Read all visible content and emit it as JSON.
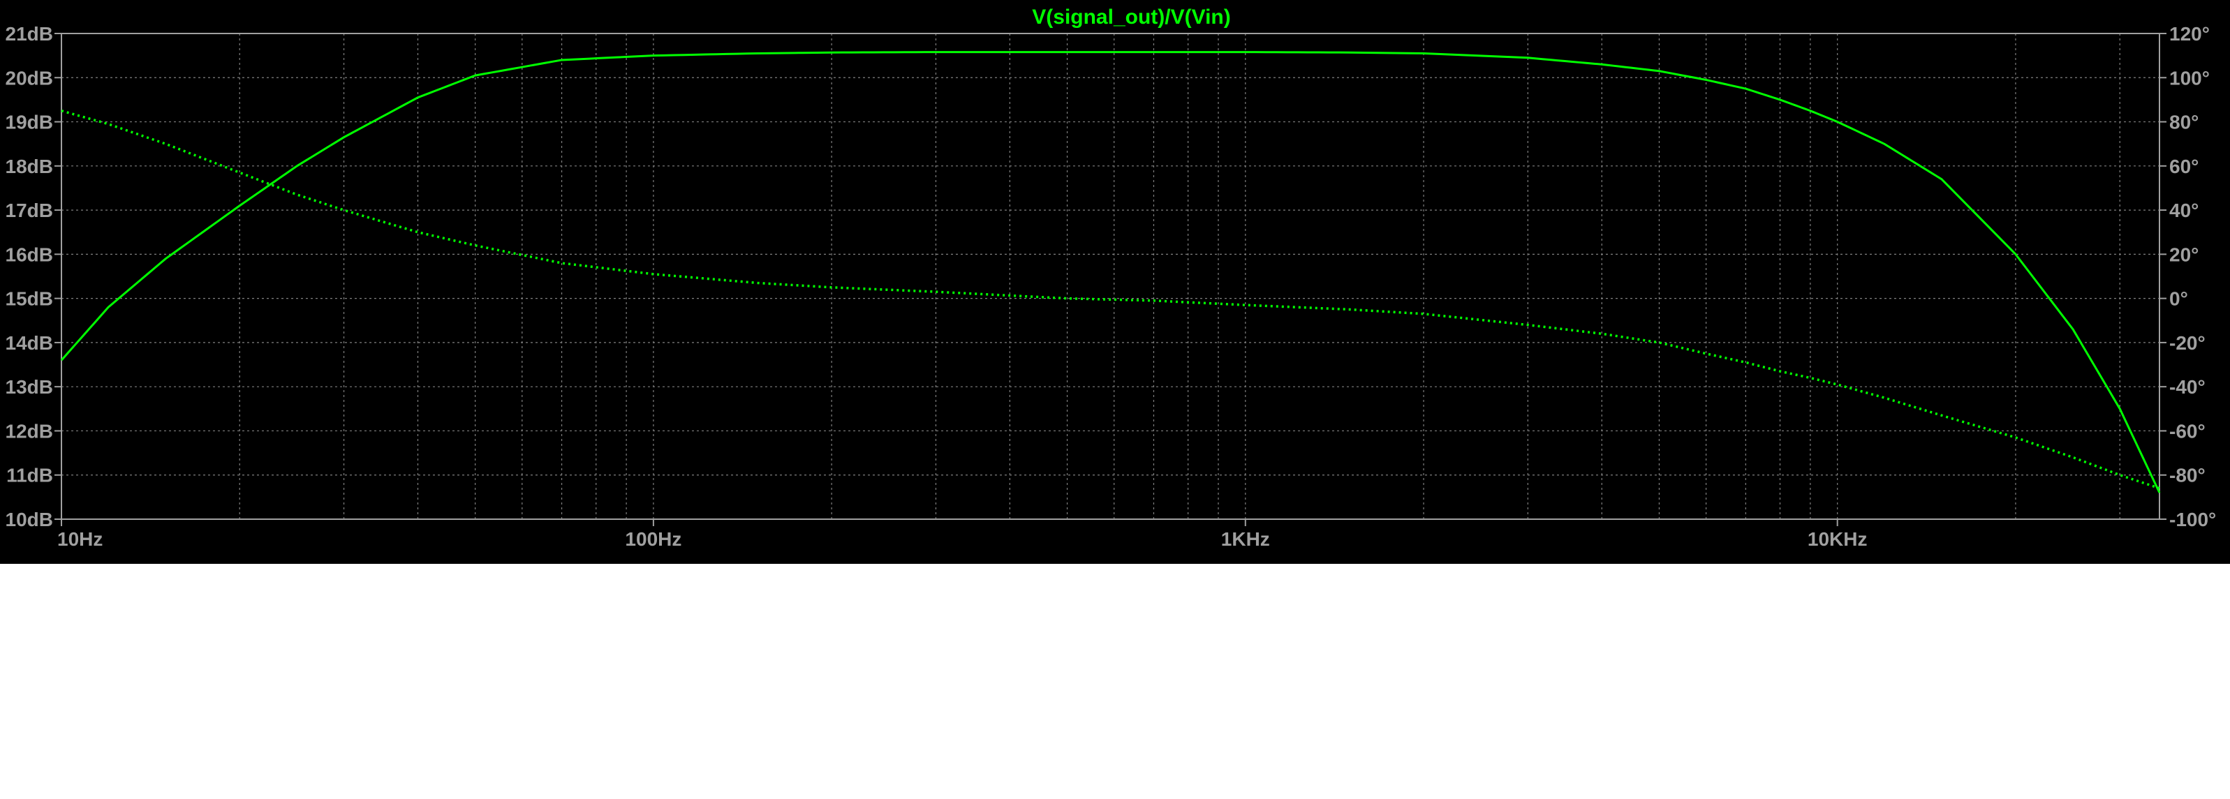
{
  "chart_data": {
    "type": "line",
    "title": "V(signal_out)/V(Vin)",
    "x_scale": "log",
    "xlim": [
      10,
      35000
    ],
    "ylim_left": [
      10,
      21
    ],
    "ylim_right": [
      -100,
      120
    ],
    "grid": true,
    "x_ticks": [
      {
        "value": 10,
        "label": "10Hz"
      },
      {
        "value": 100,
        "label": "100Hz"
      },
      {
        "value": 1000,
        "label": "1KHz"
      },
      {
        "value": 10000,
        "label": "10KHz"
      }
    ],
    "y_left_ticks": [
      {
        "value": 21,
        "label": "21dB"
      },
      {
        "value": 20,
        "label": "20dB"
      },
      {
        "value": 19,
        "label": "19dB"
      },
      {
        "value": 18,
        "label": "18dB"
      },
      {
        "value": 17,
        "label": "17dB"
      },
      {
        "value": 16,
        "label": "16dB"
      },
      {
        "value": 15,
        "label": "15dB"
      },
      {
        "value": 14,
        "label": "14dB"
      },
      {
        "value": 13,
        "label": "13dB"
      },
      {
        "value": 12,
        "label": "12dB"
      },
      {
        "value": 11,
        "label": "11dB"
      },
      {
        "value": 10,
        "label": "10dB"
      }
    ],
    "y_right_ticks": [
      {
        "value": 120,
        "label": "120°"
      },
      {
        "value": 100,
        "label": "100°"
      },
      {
        "value": 80,
        "label": "80°"
      },
      {
        "value": 60,
        "label": "60°"
      },
      {
        "value": 40,
        "label": "40°"
      },
      {
        "value": 20,
        "label": "20°"
      },
      {
        "value": 0,
        "label": "0°"
      },
      {
        "value": -20,
        "label": "-20°"
      },
      {
        "value": -40,
        "label": "-40°"
      },
      {
        "value": -60,
        "label": "-60°"
      },
      {
        "value": -80,
        "label": "-80°"
      },
      {
        "value": -100,
        "label": "-100°"
      }
    ],
    "series": [
      {
        "axis": "left",
        "style": "solid",
        "color": "#00ff00",
        "x": [
          10,
          12,
          15,
          20,
          25,
          30,
          40,
          50,
          70,
          100,
          150,
          200,
          300,
          500,
          700,
          1000,
          1500,
          2000,
          3000,
          4000,
          5000,
          6000,
          7000,
          8000,
          9000,
          10000,
          12000,
          15000,
          20000,
          25000,
          30000,
          35000
        ],
        "y": [
          13.6,
          14.8,
          15.9,
          17.1,
          18.0,
          18.65,
          19.55,
          20.05,
          20.4,
          20.5,
          20.55,
          20.57,
          20.58,
          20.58,
          20.58,
          20.58,
          20.57,
          20.55,
          20.45,
          20.3,
          20.15,
          19.95,
          19.75,
          19.5,
          19.25,
          19.0,
          18.5,
          17.7,
          16.0,
          14.3,
          12.5,
          10.6
        ]
      },
      {
        "axis": "right",
        "style": "dotted",
        "color": "#00ff00",
        "x": [
          10,
          12,
          15,
          20,
          25,
          30,
          40,
          50,
          70,
          100,
          150,
          200,
          300,
          500,
          700,
          1000,
          1500,
          2000,
          3000,
          4000,
          5000,
          6000,
          7000,
          8000,
          9000,
          10000,
          12000,
          15000,
          20000,
          25000,
          30000,
          35000
        ],
        "y": [
          85,
          79,
          70,
          57,
          47,
          40,
          30,
          24,
          16,
          11,
          7,
          5,
          3,
          0,
          -1,
          -3,
          -5,
          -7,
          -12,
          -16,
          -20,
          -25,
          -29,
          -33,
          -36,
          -39,
          -45,
          -53,
          -63,
          -72,
          -80,
          -86
        ]
      }
    ]
  }
}
